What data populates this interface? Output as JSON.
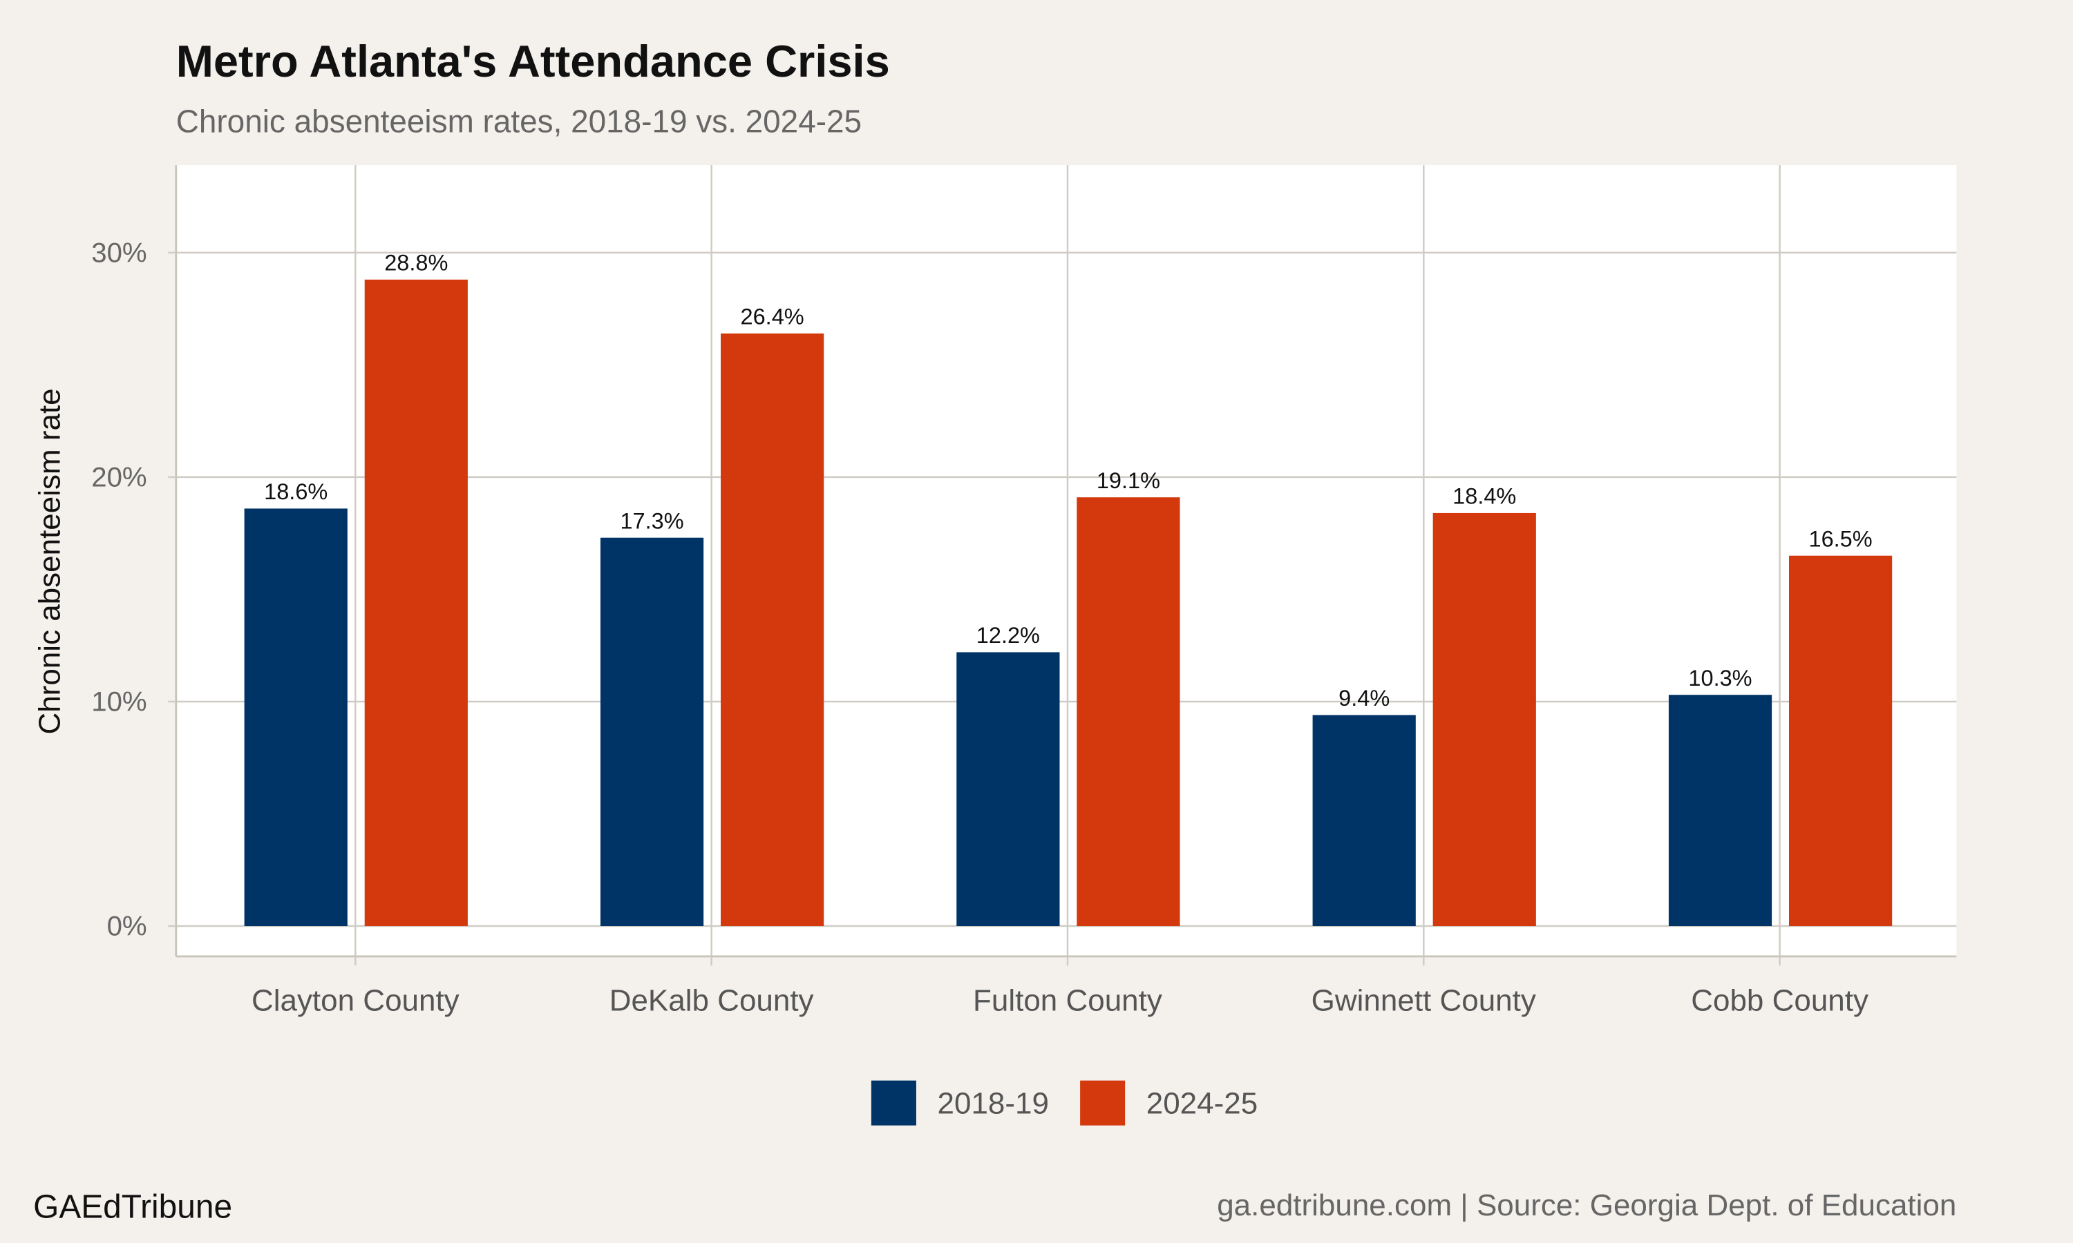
{
  "chart_data": {
    "type": "bar",
    "title": "Metro Atlanta's Attendance Crisis",
    "subtitle": "Chronic absenteeism rates, 2018-19 vs. 2024-25",
    "xlabel": "",
    "ylabel": "Chronic absenteeism rate",
    "categories": [
      "Clayton County",
      "DeKalb County",
      "Fulton County",
      "Gwinnett County",
      "Cobb County"
    ],
    "series": [
      {
        "name": "2018-19",
        "color": "#003366",
        "values": [
          18.6,
          17.3,
          12.2,
          9.4,
          10.3
        ],
        "labels": [
          "18.6%",
          "17.3%",
          "12.2%",
          "9.4%",
          "10.3%"
        ]
      },
      {
        "name": "2024-25",
        "color": "#d4380d",
        "values": [
          28.8,
          26.4,
          19.1,
          18.4,
          16.5
        ],
        "labels": [
          "28.8%",
          "26.4%",
          "19.1%",
          "18.4%",
          "16.5%"
        ]
      }
    ],
    "ylim": [
      -1.35,
      33.9
    ],
    "yticks": [
      0,
      10,
      20,
      30
    ],
    "ytick_labels": [
      "0%",
      "10%",
      "20%",
      "30%"
    ],
    "grid": true,
    "legend_position": "bottom"
  },
  "footer": {
    "brand": "GAEdTribune",
    "source": "ga.edtribune.com | Source: Georgia Dept. of Education"
  },
  "colors": {
    "background": "#f4f1ec",
    "panel": "#ffffff",
    "grid": "#d0ccc4"
  }
}
